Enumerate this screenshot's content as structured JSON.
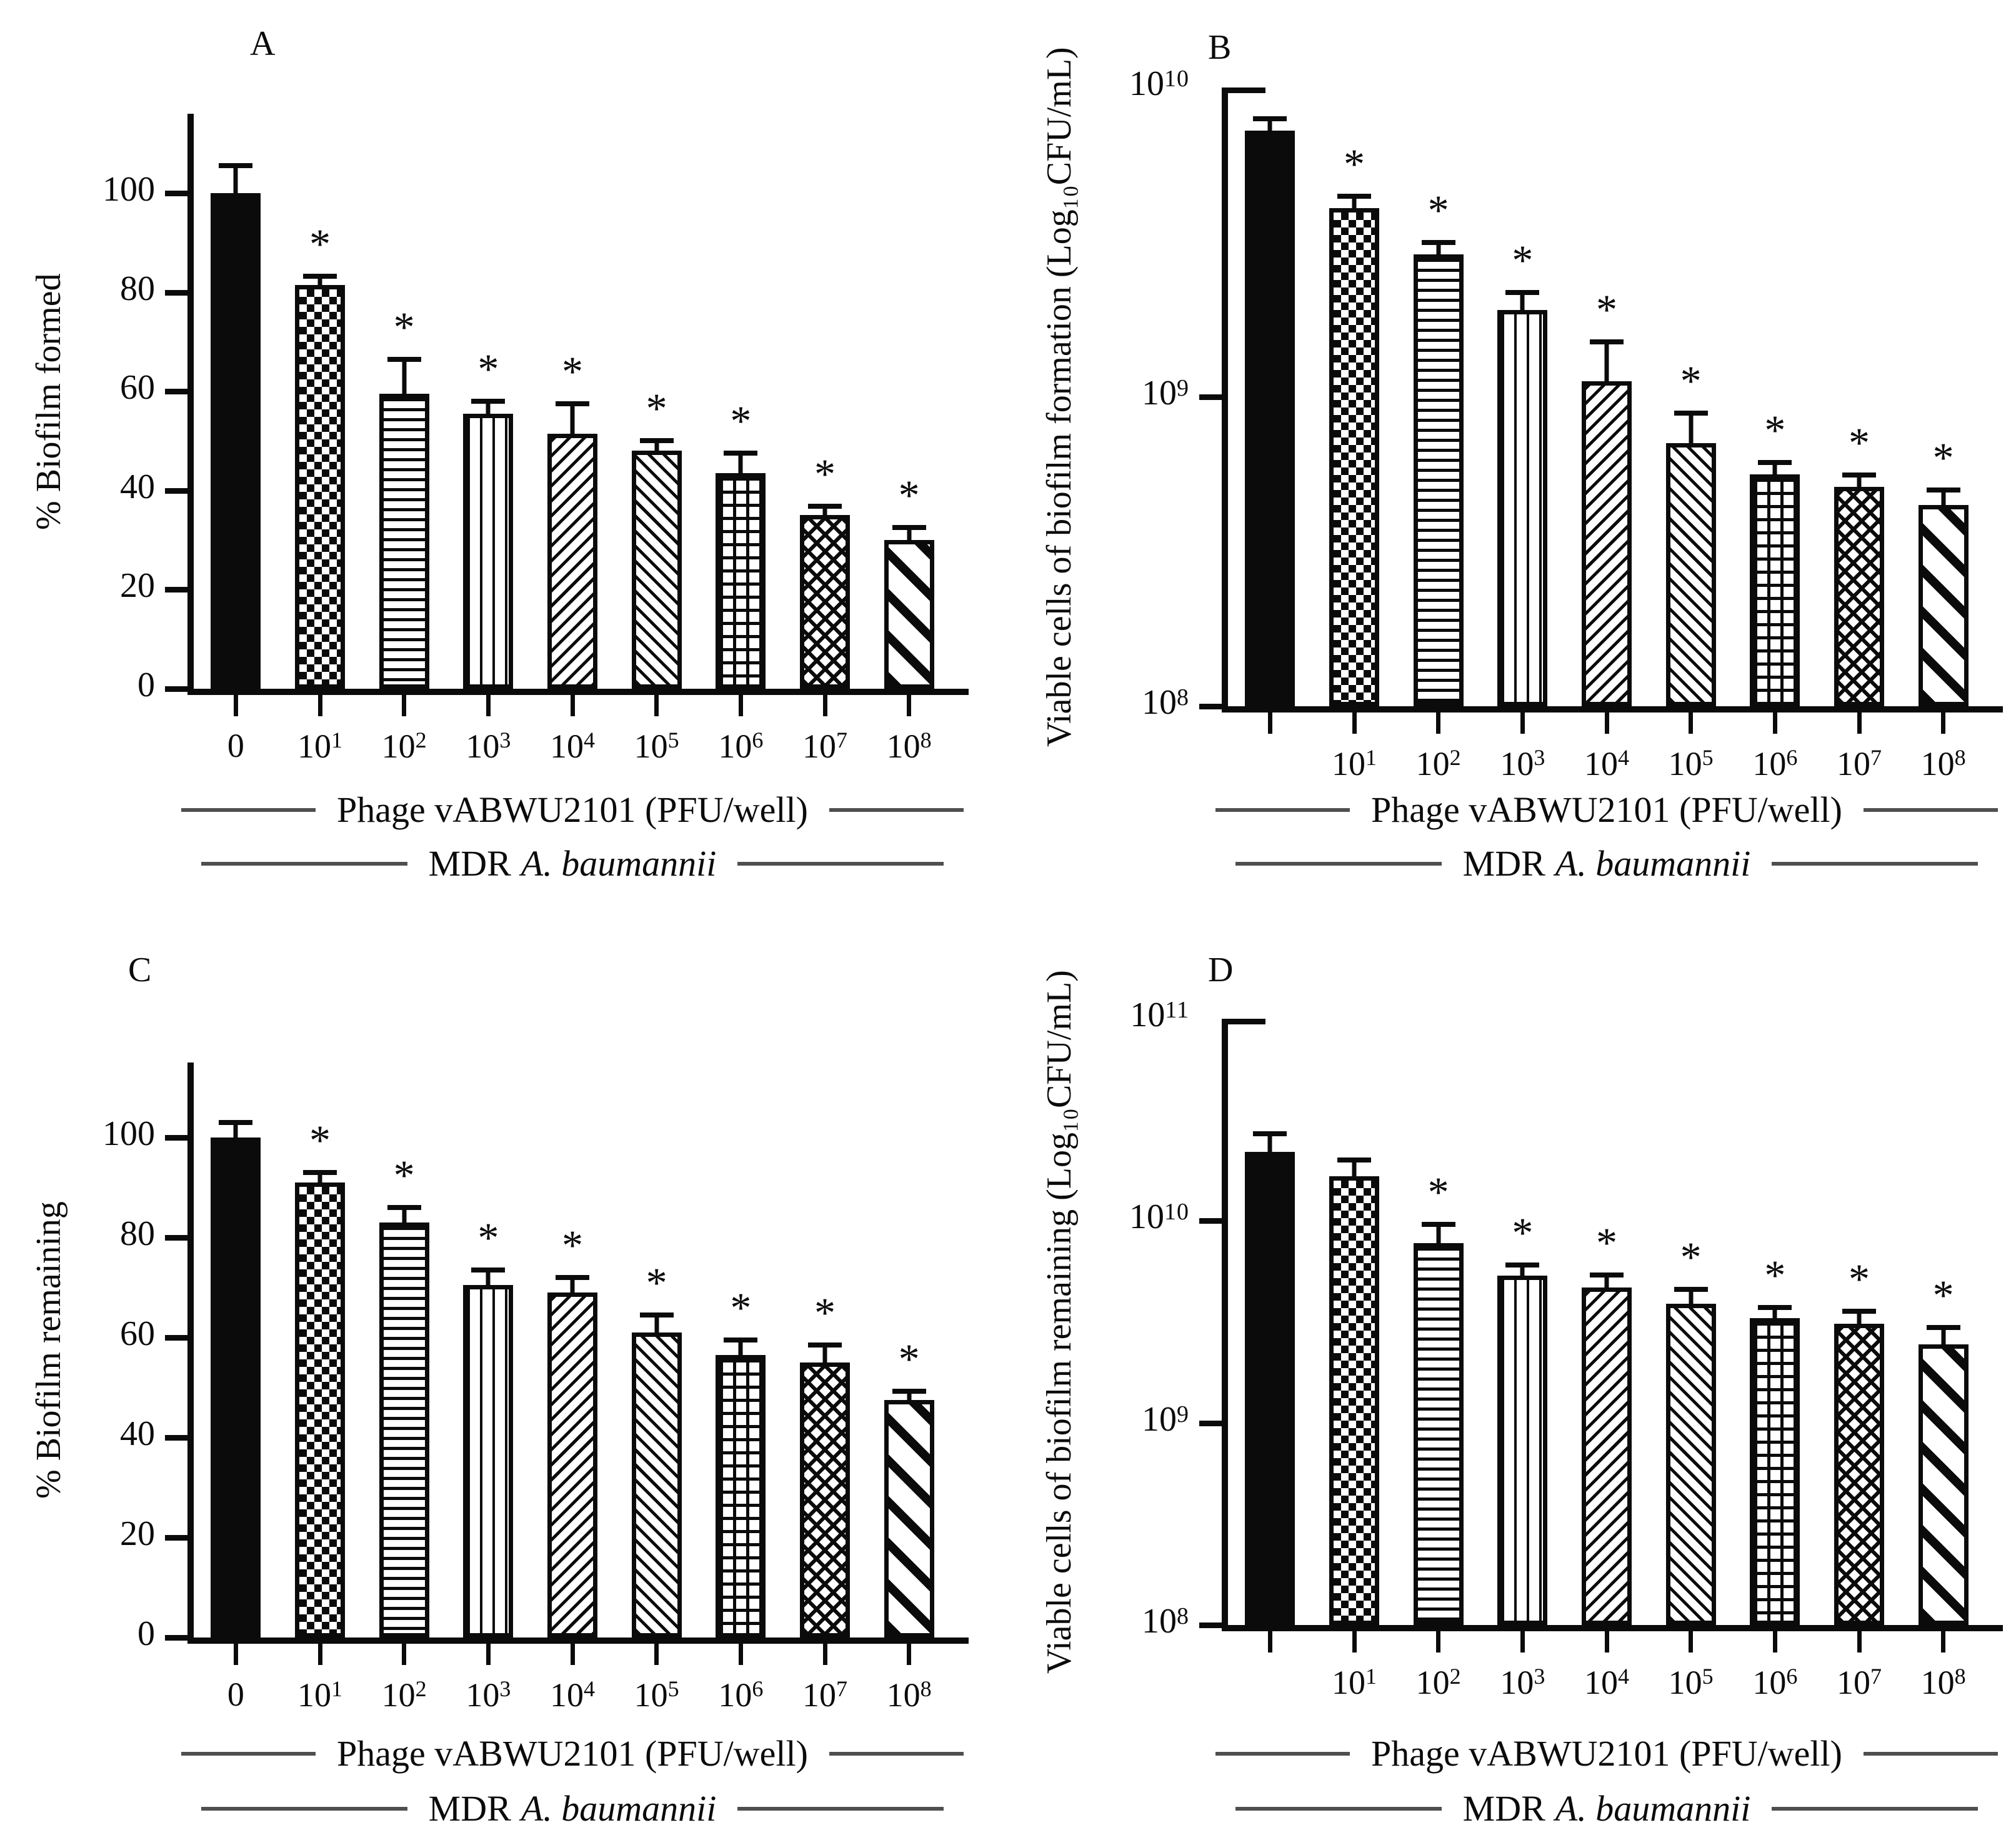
{
  "figure": {
    "background": "#ffffff",
    "ink_color": "#0b0b0b",
    "caption_line_color": "#4f4f4f",
    "bar_patterns": [
      "solid",
      "checkerboard",
      "horizontal-stripes",
      "vertical-stripes",
      "diagonal-up",
      "diagonal-down",
      "grid",
      "diagonal-weave",
      "wide-diagonal"
    ],
    "significance_marker": "*"
  },
  "chart_data": [
    {
      "type": "bar",
      "panel": "A",
      "axis": "linear",
      "ylabel": "% Biofilm formed",
      "xlabel": "Phage vABWU2101 (PFU/well)",
      "group_prefix": "MDR",
      "group_species": "A. baumannii",
      "categories": [
        "0",
        "10^1",
        "10^2",
        "10^3",
        "10^4",
        "10^5",
        "10^6",
        "10^7",
        "10^8"
      ],
      "values": [
        100,
        81.5,
        59.5,
        55.5,
        51.5,
        48,
        43.5,
        35,
        30
      ],
      "error_up": [
        5,
        1,
        6.5,
        2,
        5.5,
        1.5,
        3.5,
        1,
        2
      ],
      "significant": [
        false,
        true,
        true,
        true,
        true,
        true,
        true,
        true,
        true
      ],
      "bar_patterns": [
        "solid",
        "checkerboard",
        "horizontal-stripes",
        "vertical-stripes",
        "diagonal-up",
        "diagonal-down",
        "grid",
        "diagonal-weave",
        "wide-diagonal"
      ],
      "yticks": [
        "0",
        "20",
        "40",
        "60",
        "80",
        "100"
      ],
      "ytick_values": [
        0,
        20,
        40,
        60,
        80,
        100
      ],
      "ylim": [
        0,
        116
      ],
      "grid": false,
      "legend": "none"
    },
    {
      "type": "bar",
      "panel": "B",
      "axis": "log10",
      "ylabel": "Viable cells of biofilm formation (Log₁₀CFU/mL)",
      "xlabel": "Phage vABWU2101 (PFU/well)",
      "group_prefix": "MDR",
      "group_species": "A. baumannii",
      "categories": [
        "",
        "10^1",
        "10^2",
        "10^3",
        "10^4",
        "10^5",
        "10^6",
        "10^7",
        "10^8"
      ],
      "values_log10": [
        9.86,
        9.61,
        9.46,
        9.28,
        9.05,
        8.85,
        8.75,
        8.71,
        8.65
      ],
      "error_up_log10": [
        0.03,
        0.03,
        0.03,
        0.05,
        0.12,
        0.09,
        0.03,
        0.03,
        0.04
      ],
      "significant": [
        false,
        true,
        true,
        true,
        true,
        true,
        true,
        true,
        true
      ],
      "bar_patterns": [
        "solid",
        "checkerboard",
        "horizontal-stripes",
        "vertical-stripes",
        "diagonal-up",
        "diagonal-down",
        "grid",
        "diagonal-weave",
        "wide-diagonal"
      ],
      "yticks": [
        "10^8",
        "10^9",
        "10^10"
      ],
      "ytick_values": [
        8,
        9,
        10
      ],
      "ylim_log10": [
        8,
        10
      ],
      "grid": false,
      "legend": "none"
    },
    {
      "type": "bar",
      "panel": "C",
      "axis": "linear",
      "ylabel": "% Biofilm remaining",
      "xlabel": "Phage vABWU2101 (PFU/well)",
      "group_prefix": "MDR",
      "group_species": "A. baumannii",
      "categories": [
        "0",
        "10^1",
        "10^2",
        "10^3",
        "10^4",
        "10^5",
        "10^6",
        "10^7",
        "10^8"
      ],
      "values": [
        100,
        91,
        83,
        70.5,
        69,
        61,
        56.5,
        55,
        47.5
      ],
      "error_up": [
        2.5,
        1.5,
        2.5,
        2.5,
        2.5,
        3,
        2.5,
        3,
        1
      ],
      "significant": [
        false,
        true,
        true,
        true,
        true,
        true,
        true,
        true,
        true
      ],
      "bar_patterns": [
        "solid",
        "checkerboard",
        "horizontal-stripes",
        "vertical-stripes",
        "diagonal-up",
        "diagonal-down",
        "grid",
        "diagonal-weave",
        "wide-diagonal"
      ],
      "yticks": [
        "0",
        "20",
        "40",
        "60",
        "80",
        "100"
      ],
      "ytick_values": [
        0,
        20,
        40,
        60,
        80,
        100
      ],
      "ylim": [
        0,
        115
      ],
      "grid": false,
      "legend": "none"
    },
    {
      "type": "bar",
      "panel": "D",
      "axis": "log10",
      "ylabel": "Viable cells of biofilm remaining (Log₁₀CFU/mL)",
      "xlabel": "Phage vABWU2101 (PFU/well)",
      "group_prefix": "MDR",
      "group_species": "A. baumannii",
      "categories": [
        "",
        "10^1",
        "10^2",
        "10^3",
        "10^4",
        "10^5",
        "10^6",
        "10^7",
        "10^8"
      ],
      "values_log10": [
        10.34,
        10.22,
        9.89,
        9.73,
        9.67,
        9.59,
        9.52,
        9.49,
        9.39
      ],
      "error_up_log10": [
        0.08,
        0.07,
        0.08,
        0.04,
        0.05,
        0.06,
        0.04,
        0.05,
        0.07
      ],
      "significant": [
        false,
        false,
        true,
        true,
        true,
        true,
        true,
        true,
        true
      ],
      "bar_patterns": [
        "solid",
        "checkerboard",
        "horizontal-stripes",
        "vertical-stripes",
        "diagonal-up",
        "diagonal-down",
        "grid",
        "diagonal-weave",
        "wide-diagonal"
      ],
      "yticks": [
        "10^8",
        "10^9",
        "10^10",
        "10^11"
      ],
      "ytick_values": [
        8,
        9,
        10,
        11
      ],
      "ylim_log10": [
        8,
        11
      ],
      "grid": false,
      "legend": "none"
    }
  ]
}
